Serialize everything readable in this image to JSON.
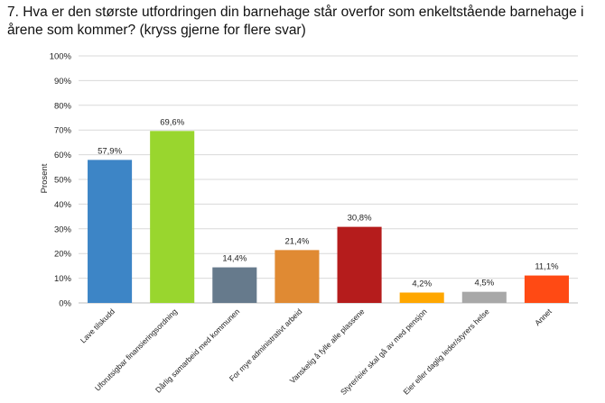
{
  "chart_data": {
    "type": "bar",
    "title": "7. Hva er den største utfordringen din barnehage står overfor som enkeltstående barnehage i årene som kommer? (kryss gjerne for flere svar)",
    "ylabel": "Prosent",
    "xlabel": "",
    "ylim": [
      0,
      100
    ],
    "yticks": [
      "0%",
      "10%",
      "20%",
      "30%",
      "40%",
      "50%",
      "60%",
      "70%",
      "80%",
      "90%",
      "100%"
    ],
    "grid": true,
    "categories": [
      "Lave tilskudd",
      "Uforutsigbar finansieringsordning",
      "Dårlig samarbeid med kommunen",
      "For mye administrativt arbeid",
      "Vanskelig å fylle alle plassene",
      "Styrer/eier skal gå av med pensjon",
      "Eier eller daglig leder/styrers helse",
      "Annet"
    ],
    "values": [
      57.9,
      69.6,
      14.4,
      21.4,
      30.8,
      4.2,
      4.5,
      11.1
    ],
    "value_labels": [
      "57,9%",
      "69,6%",
      "14,4%",
      "21,4%",
      "30,8%",
      "4,2%",
      "4,5%",
      "11,1%"
    ],
    "colors": [
      "#3d85c6",
      "#99d62e",
      "#667a8c",
      "#e08a33",
      "#b51c1c",
      "#ffa700",
      "#a8a8a8",
      "#ff4a14"
    ]
  }
}
